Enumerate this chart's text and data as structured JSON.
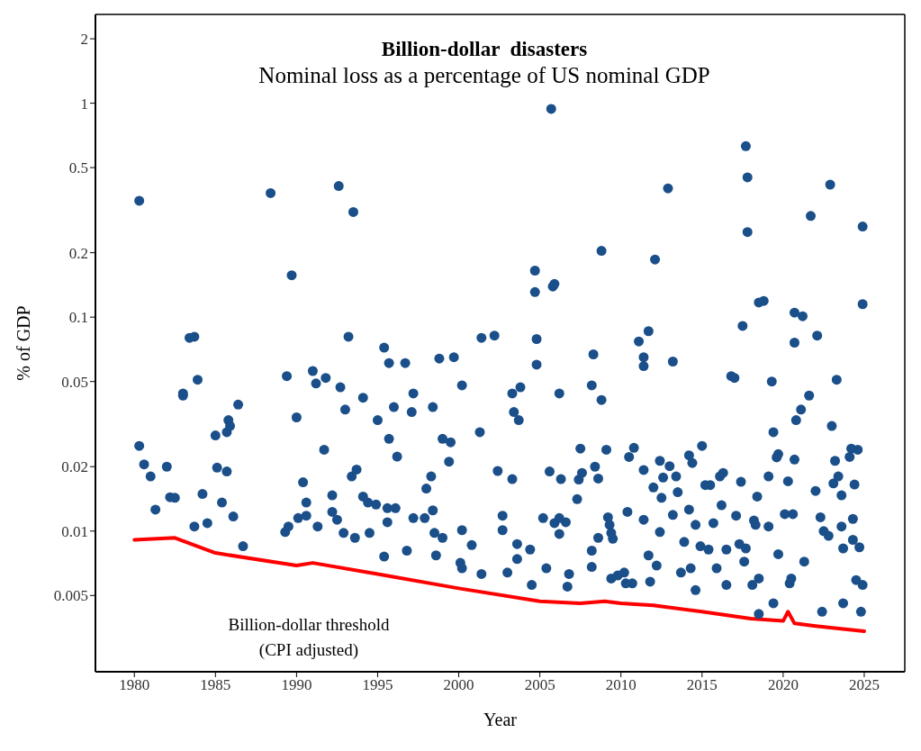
{
  "chart_data": {
    "type": "scatter",
    "title": "Billion-dollar  disasters",
    "subtitle": "Nominal loss as a percentage of US nominal GDP",
    "xlabel": "Year",
    "ylabel": "% of GDP",
    "log": "y",
    "xlim": [
      1977.6,
      2027.5
    ],
    "xticks": [
      1980,
      1985,
      1990,
      1995,
      2000,
      2005,
      2010,
      2015,
      2020,
      2025
    ],
    "ylim": [
      0.0022,
      2.6
    ],
    "yticks": [
      0.005,
      0.01,
      0.02,
      0.05,
      0.1,
      0.2,
      0.5,
      1,
      2
    ],
    "annotations": [
      "Billion-dollar threshold\n(CPI adjusted)"
    ],
    "series": [
      {
        "marker": "circle",
        "color": "#1a4f8a",
        "x": [
          1980.3,
          1980.3,
          1980.6,
          1981.0,
          1981.3,
          1982.0,
          1982.2,
          1982.5,
          1983.0,
          1983.0,
          1983.4,
          1983.7,
          1983.7,
          1983.9,
          1984.2,
          1984.5,
          1985.0,
          1985.1,
          1985.4,
          1985.7,
          1985.7,
          1985.8,
          1985.9,
          1986.1,
          1986.4,
          1986.7,
          1988.4,
          1989.3,
          1989.5,
          1989.4,
          1989.7,
          1990.0,
          1990.1,
          1990.4,
          1990.6,
          1990.6,
          1991.0,
          1991.2,
          1991.3,
          1991.7,
          1991.8,
          1992.2,
          1992.2,
          1992.5,
          1992.6,
          1992.7,
          1993.0,
          1992.9,
          1993.2,
          1993.4,
          1993.5,
          1993.7,
          1993.6,
          1994.1,
          1994.1,
          1994.4,
          1994.5,
          1994.9,
          1995.0,
          1995.4,
          1995.4,
          1995.6,
          1995.6,
          1995.7,
          1995.7,
          1996.0,
          1996.2,
          1996.1,
          1996.7,
          1996.8,
          1997.1,
          1997.2,
          1997.2,
          1997.9,
          1998.0,
          1998.3,
          1998.4,
          1998.4,
          1998.5,
          1998.6,
          1998.8,
          1999.0,
          1999.0,
          1999.4,
          1999.5,
          1999.7,
          2000.1,
          2000.2,
          2000.2,
          2000.2,
          2000.8,
          2001.3,
          2001.4,
          2001.4,
          2002.2,
          2002.4,
          2002.7,
          2002.7,
          2003.0,
          2003.3,
          2003.3,
          2003.4,
          2003.7,
          2003.8,
          2003.6,
          2003.6,
          2004.4,
          2004.5,
          2004.7,
          2004.7,
          2004.8,
          2004.8,
          2005.2,
          2005.4,
          2005.6,
          2005.7,
          2005.8,
          2005.9,
          2005.9,
          2006.2,
          2006.3,
          2006.2,
          2006.2,
          2006.6,
          2006.7,
          2006.8,
          2007.3,
          2007.4,
          2007.6,
          2007.5,
          2008.2,
          2008.3,
          2008.2,
          2008.2,
          2008.4,
          2008.6,
          2008.6,
          2008.8,
          2008.8,
          2009.1,
          2009.2,
          2009.3,
          2009.4,
          2009.4,
          2009.5,
          2009.8,
          2010.2,
          2010.3,
          2010.4,
          2010.5,
          2010.8,
          2010.7,
          2011.1,
          2011.4,
          2011.4,
          2011.4,
          2011.4,
          2011.7,
          2011.7,
          2011.8,
          2012.1,
          2012.0,
          2012.2,
          2012.4,
          2012.6,
          2012.5,
          2012.4,
          2012.9,
          2013.0,
          2013.2,
          2013.2,
          2013.4,
          2013.5,
          2013.7,
          2013.9,
          2014.2,
          2014.2,
          2014.3,
          2014.4,
          2014.6,
          2014.6,
          2014.9,
          2015.0,
          2015.2,
          2015.4,
          2015.5,
          2015.7,
          2015.9,
          2016.1,
          2016.2,
          2016.3,
          2016.5,
          2016.5,
          2016.8,
          2017.0,
          2017.1,
          2017.3,
          2017.4,
          2017.5,
          2017.6,
          2017.7,
          2017.7,
          2017.8,
          2017.8,
          2018.1,
          2018.2,
          2018.3,
          2018.5,
          2018.8,
          2018.4,
          2018.5,
          2018.5,
          2019.1,
          2019.1,
          2019.3,
          2019.4,
          2019.4,
          2019.6,
          2019.7,
          2019.7,
          2020.1,
          2020.3,
          2020.4,
          2020.5,
          2020.6,
          2020.7,
          2020.7,
          2020.7,
          2020.8,
          2021.1,
          2021.2,
          2021.3,
          2021.6,
          2021.7,
          2022.0,
          2022.1,
          2022.3,
          2022.4,
          2022.5,
          2022.8,
          2022.9,
          2023.0,
          2023.1,
          2023.3,
          2023.2,
          2023.4,
          2023.6,
          2023.6,
          2023.7,
          2023.7,
          2024.1,
          2024.2,
          2024.4,
          2024.3,
          2024.3,
          2024.5,
          2024.6,
          2024.7,
          2024.8,
          2024.9,
          2024.9,
          2024.9
        ],
        "values": [
          0.35,
          0.025,
          0.0205,
          0.018,
          0.0126,
          0.02,
          0.0144,
          0.0143,
          0.044,
          0.043,
          0.08,
          0.081,
          0.0105,
          0.051,
          0.0149,
          0.0109,
          0.028,
          0.0198,
          0.0136,
          0.029,
          0.019,
          0.033,
          0.031,
          0.0117,
          0.039,
          0.0085,
          0.38,
          0.0099,
          0.0105,
          0.053,
          0.157,
          0.034,
          0.0115,
          0.0169,
          0.0136,
          0.0118,
          0.056,
          0.049,
          0.0105,
          0.024,
          0.052,
          0.0147,
          0.0123,
          0.0113,
          0.41,
          0.047,
          0.037,
          0.0098,
          0.081,
          0.018,
          0.31,
          0.0194,
          0.0093,
          0.042,
          0.0145,
          0.0136,
          0.0098,
          0.0133,
          0.033,
          0.072,
          0.0076,
          0.0128,
          0.011,
          0.061,
          0.027,
          0.038,
          0.0223,
          0.0128,
          0.061,
          0.0081,
          0.036,
          0.044,
          0.0115,
          0.0115,
          0.0158,
          0.018,
          0.038,
          0.0125,
          0.0098,
          0.0077,
          0.064,
          0.027,
          0.0093,
          0.0211,
          0.026,
          0.065,
          0.0071,
          0.048,
          0.0101,
          0.0067,
          0.0086,
          0.029,
          0.08,
          0.0063,
          0.082,
          0.0191,
          0.0118,
          0.0101,
          0.0064,
          0.0175,
          0.044,
          0.036,
          0.033,
          0.047,
          0.0087,
          0.0074,
          0.0082,
          0.0056,
          0.165,
          0.131,
          0.079,
          0.06,
          0.0115,
          0.0067,
          0.019,
          0.94,
          0.139,
          0.143,
          0.0109,
          0.044,
          0.0175,
          0.0115,
          0.0097,
          0.011,
          0.0055,
          0.0063,
          0.0141,
          0.0174,
          0.0187,
          0.0243,
          0.048,
          0.067,
          0.0081,
          0.0068,
          0.02,
          0.0176,
          0.0093,
          0.204,
          0.041,
          0.024,
          0.0116,
          0.0107,
          0.006,
          0.0098,
          0.0092,
          0.0062,
          0.0064,
          0.0057,
          0.0123,
          0.0222,
          0.0245,
          0.0057,
          0.077,
          0.065,
          0.059,
          0.0193,
          0.0113,
          0.086,
          0.0077,
          0.0058,
          0.186,
          0.016,
          0.0069,
          0.0213,
          0.0178,
          0.0143,
          0.0099,
          0.4,
          0.0201,
          0.062,
          0.0119,
          0.018,
          0.0152,
          0.0064,
          0.0089,
          0.0126,
          0.0226,
          0.0067,
          0.0208,
          0.0107,
          0.0053,
          0.0085,
          0.025,
          0.0164,
          0.0082,
          0.0164,
          0.0109,
          0.0067,
          0.018,
          0.0132,
          0.0187,
          0.0082,
          0.0056,
          0.053,
          0.052,
          0.0118,
          0.0087,
          0.017,
          0.091,
          0.0072,
          0.0083,
          0.63,
          0.45,
          0.25,
          0.0056,
          0.0112,
          0.0107,
          0.117,
          0.119,
          0.0145,
          0.006,
          0.0041,
          0.018,
          0.0105,
          0.05,
          0.029,
          0.0046,
          0.0221,
          0.0078,
          0.0229,
          0.012,
          0.0171,
          0.0057,
          0.006,
          0.012,
          0.076,
          0.105,
          0.0216,
          0.033,
          0.037,
          0.101,
          0.0072,
          0.043,
          0.297,
          0.0154,
          0.082,
          0.0116,
          0.0042,
          0.01,
          0.0095,
          0.416,
          0.031,
          0.0167,
          0.051,
          0.0213,
          0.018,
          0.0147,
          0.0105,
          0.0083,
          0.0046,
          0.0222,
          0.0243,
          0.0165,
          0.0114,
          0.0091,
          0.0059,
          0.024,
          0.0084,
          0.0042,
          0.265,
          0.115,
          0.0056
        ]
      },
      {
        "type": "line",
        "color": "#ff0000",
        "x": [
          1980,
          1982.5,
          1985,
          1990,
          1991,
          1995,
          2000,
          2005,
          2007.5,
          2009,
          2010,
          2012,
          2015,
          2018,
          2020,
          2020.3,
          2020.7,
          2022,
          2025
        ],
        "values": [
          0.0091,
          0.0093,
          0.0079,
          0.0069,
          0.0071,
          0.0063,
          0.0054,
          0.0047,
          0.0046,
          0.0047,
          0.0046,
          0.0045,
          0.0042,
          0.0039,
          0.0038,
          0.0042,
          0.0037,
          0.0036,
          0.0034
        ]
      }
    ]
  }
}
